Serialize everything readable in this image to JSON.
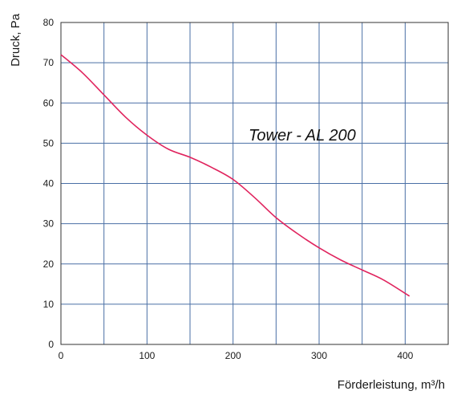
{
  "chart_data": {
    "type": "line",
    "xlabel": "Förderleistung, m³/h",
    "ylabel": "Druck, Pa",
    "annotation": "Tower - AL 200",
    "xlim": [
      0,
      450
    ],
    "ylim": [
      0,
      80
    ],
    "x_ticks": [
      "0",
      "100",
      "200",
      "300",
      "400"
    ],
    "y_ticks": [
      "0",
      "10",
      "20",
      "30",
      "40",
      "50",
      "60",
      "70",
      "80"
    ],
    "x_grid_step": 50,
    "y_grid_step": 10,
    "grid": true,
    "colors": {
      "line": "#e0245e",
      "grid": "#4a6fa5",
      "frame": "#333333"
    },
    "series": [
      {
        "x": [
          0,
          25,
          50,
          75,
          100,
          125,
          150,
          175,
          200,
          225,
          250,
          275,
          300,
          325,
          350,
          375,
          405
        ],
        "y": [
          72,
          67.5,
          62,
          56.5,
          52,
          48.5,
          46.5,
          44,
          41,
          36.5,
          31.5,
          27.5,
          24,
          21,
          18.5,
          16,
          12
        ]
      }
    ]
  }
}
